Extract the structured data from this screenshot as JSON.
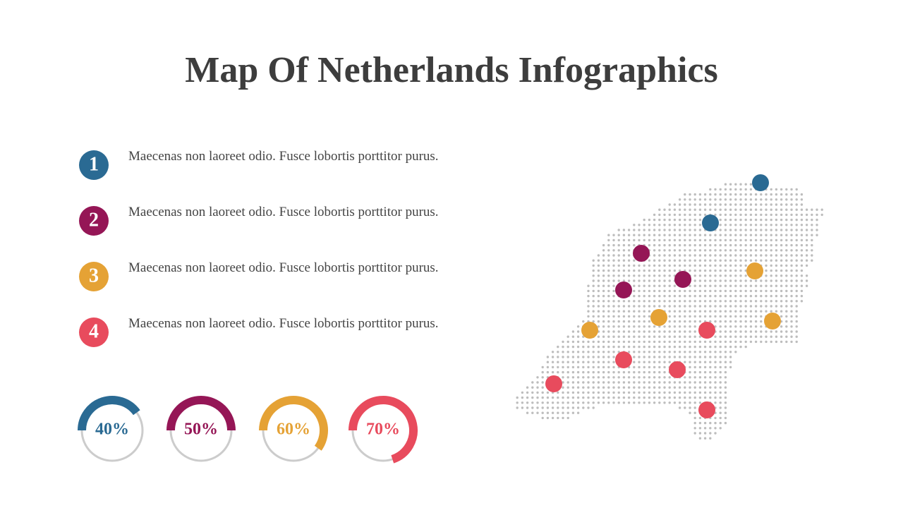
{
  "title": "Map Of Netherlands Infographics",
  "items": [
    {
      "number": "1",
      "text": "Maecenas non laoreet odio. Fusce lobortis porttitor purus.",
      "color": "#2a6a93"
    },
    {
      "number": "2",
      "text": "Maecenas non laoreet odio. Fusce lobortis porttitor purus.",
      "color": "#951656"
    },
    {
      "number": "3",
      "text": "Maecenas non laoreet odio. Fusce lobortis porttitor purus.",
      "color": "#e5a235"
    },
    {
      "number": "4",
      "text": "Maecenas non laoreet odio. Fusce lobortis porttitor purus.",
      "color": "#e84b5d"
    }
  ],
  "gauges": [
    {
      "value": 40,
      "label": "40%",
      "color": "#2a6a93"
    },
    {
      "value": 50,
      "label": "50%",
      "color": "#951656"
    },
    {
      "value": 60,
      "label": "60%",
      "color": "#e5a235"
    },
    {
      "value": 70,
      "label": "70%",
      "color": "#e84b5d"
    }
  ]
}
